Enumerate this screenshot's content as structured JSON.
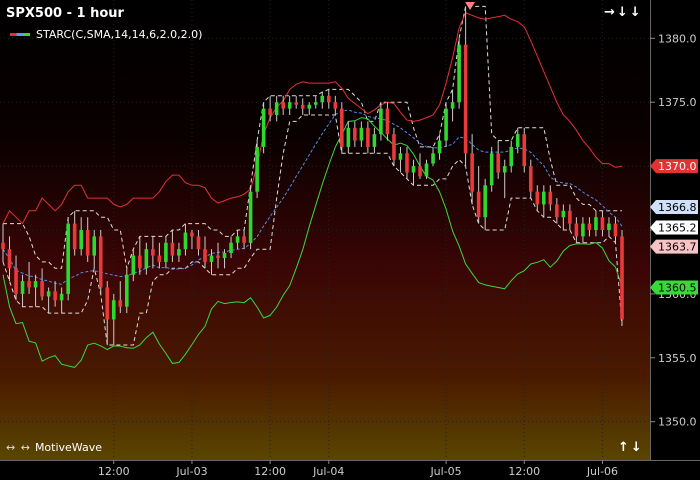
{
  "header": {
    "title": "SPX500 - 1 hour",
    "legend_label": "STARC(C,SMA,14,14,6,2.0,2.0)"
  },
  "brand": {
    "arrows": "↔ ↔",
    "name": "MotiveWave"
  },
  "nav": {
    "top_right": "→↓↓",
    "bottom_right": "↑↓"
  },
  "colors": {
    "upper_band": "#e23232",
    "lower_band": "#3ad83a",
    "middle": "#4a8fe8",
    "price_band": "#dddddd",
    "bull": "#2fd82f",
    "bear": "#e83a3a"
  },
  "chart_data": {
    "type": "candlestick",
    "ylim": [
      1347,
      1383
    ],
    "yticks": [
      1350.0,
      1355.0,
      1360.0,
      1365.0,
      1370.0,
      1375.0,
      1380.0
    ],
    "x_labels": [
      "12:00",
      "Jul-03",
      "12:00",
      "Jul-04",
      "Jul-05",
      "12:00",
      "Jul-06"
    ],
    "x_label_bars": [
      17,
      29,
      41,
      50,
      68,
      80,
      92
    ],
    "price_markers": [
      {
        "label": "1370.0",
        "value": 1370.0,
        "bg": "#e23232",
        "fg": "#ffffff"
      },
      {
        "label": "1366.8",
        "value": 1366.8,
        "bg": "#cfe0f8",
        "fg": "#000000"
      },
      {
        "label": "1365.2",
        "value": 1365.2,
        "bg": "#ffffff",
        "fg": "#000000"
      },
      {
        "label": "1363.7",
        "value": 1363.7,
        "bg": "#f6c4c4",
        "fg": "#000000"
      },
      {
        "label": "1360.5",
        "value": 1360.5,
        "bg": "#3ad83a",
        "fg": "#000000"
      }
    ],
    "candles": [
      [
        1364.0,
        1365.5,
        1362.5,
        1363.5
      ],
      [
        1363.5,
        1364.5,
        1361.0,
        1362.0
      ],
      [
        1362.0,
        1363.0,
        1359.5,
        1360.0
      ],
      [
        1360.0,
        1361.5,
        1359.0,
        1361.0
      ],
      [
        1361.0,
        1362.5,
        1360.0,
        1360.5
      ],
      [
        1360.5,
        1361.5,
        1359.0,
        1361.0
      ],
      [
        1361.0,
        1362.0,
        1359.5,
        1359.8
      ],
      [
        1359.8,
        1360.5,
        1358.5,
        1360.2
      ],
      [
        1360.2,
        1361.0,
        1359.0,
        1359.5
      ],
      [
        1359.5,
        1360.5,
        1358.5,
        1360.0
      ],
      [
        1360.0,
        1366.0,
        1359.5,
        1365.5
      ],
      [
        1365.5,
        1366.5,
        1363.0,
        1363.5
      ],
      [
        1363.5,
        1366.0,
        1363.0,
        1365.0
      ],
      [
        1365.0,
        1366.0,
        1362.5,
        1363.0
      ],
      [
        1363.0,
        1365.0,
        1362.0,
        1364.5
      ],
      [
        1364.5,
        1365.0,
        1360.0,
        1360.5
      ],
      [
        1360.5,
        1361.0,
        1356.0,
        1358.0
      ],
      [
        1358.0,
        1360.0,
        1356.0,
        1359.5
      ],
      [
        1359.5,
        1361.0,
        1358.5,
        1359.0
      ],
      [
        1359.0,
        1362.0,
        1358.5,
        1361.5
      ],
      [
        1361.5,
        1363.5,
        1361.0,
        1363.0
      ],
      [
        1363.0,
        1364.5,
        1361.5,
        1362.0
      ],
      [
        1362.0,
        1364.0,
        1361.5,
        1363.5
      ],
      [
        1363.5,
        1364.5,
        1362.0,
        1363.0
      ],
      [
        1363.0,
        1364.0,
        1362.0,
        1362.5
      ],
      [
        1362.5,
        1364.5,
        1362.0,
        1364.0
      ],
      [
        1364.0,
        1365.0,
        1362.5,
        1363.0
      ],
      [
        1363.0,
        1364.0,
        1362.5,
        1363.5
      ],
      [
        1363.5,
        1365.5,
        1363.0,
        1364.8
      ],
      [
        1364.8,
        1365.0,
        1363.5,
        1364.5
      ],
      [
        1364.5,
        1365.0,
        1363.0,
        1363.5
      ],
      [
        1363.5,
        1364.5,
        1362.0,
        1362.5
      ],
      [
        1362.5,
        1363.5,
        1361.5,
        1363.0
      ],
      [
        1363.0,
        1364.0,
        1362.0,
        1362.8
      ],
      [
        1362.8,
        1363.5,
        1362.0,
        1363.2
      ],
      [
        1363.2,
        1364.5,
        1362.8,
        1364.0
      ],
      [
        1364.0,
        1365.0,
        1363.5,
        1364.5
      ],
      [
        1364.5,
        1365.0,
        1363.5,
        1364.0
      ],
      [
        1364.0,
        1368.5,
        1363.5,
        1368.0
      ],
      [
        1368.0,
        1372.0,
        1367.5,
        1371.5
      ],
      [
        1371.5,
        1375.0,
        1371.0,
        1374.5
      ],
      [
        1374.5,
        1375.5,
        1373.5,
        1374.0
      ],
      [
        1374.0,
        1375.5,
        1373.5,
        1375.0
      ],
      [
        1375.0,
        1375.5,
        1374.0,
        1374.5
      ],
      [
        1374.5,
        1375.5,
        1374.0,
        1375.0
      ],
      [
        1375.0,
        1375.5,
        1374.5,
        1374.8
      ],
      [
        1374.8,
        1375.3,
        1374.0,
        1374.5
      ],
      [
        1374.5,
        1375.0,
        1374.0,
        1374.8
      ],
      [
        1374.8,
        1375.5,
        1374.5,
        1375.0
      ],
      [
        1375.0,
        1375.8,
        1374.5,
        1375.5
      ],
      [
        1375.5,
        1376.0,
        1374.5,
        1375.0
      ],
      [
        1375.0,
        1375.5,
        1374.0,
        1374.5
      ],
      [
        1374.5,
        1375.0,
        1371.0,
        1371.5
      ],
      [
        1371.5,
        1373.5,
        1371.0,
        1373.0
      ],
      [
        1373.0,
        1373.5,
        1371.5,
        1372.0
      ],
      [
        1372.0,
        1373.5,
        1371.5,
        1373.0
      ],
      [
        1373.0,
        1373.5,
        1371.0,
        1371.5
      ],
      [
        1371.5,
        1373.0,
        1371.0,
        1372.5
      ],
      [
        1372.5,
        1375.0,
        1372.0,
        1374.5
      ],
      [
        1374.5,
        1375.0,
        1372.0,
        1372.5
      ],
      [
        1372.5,
        1373.0,
        1370.0,
        1370.5
      ],
      [
        1370.5,
        1371.5,
        1369.5,
        1371.0
      ],
      [
        1371.0,
        1371.5,
        1369.0,
        1369.5
      ],
      [
        1369.5,
        1370.5,
        1368.5,
        1370.0
      ],
      [
        1370.0,
        1371.0,
        1369.0,
        1369.2
      ],
      [
        1369.2,
        1370.5,
        1369.0,
        1370.2
      ],
      [
        1370.2,
        1371.5,
        1370.0,
        1371.0
      ],
      [
        1371.0,
        1372.5,
        1370.5,
        1372.0
      ],
      [
        1372.0,
        1375.0,
        1371.5,
        1374.5
      ],
      [
        1374.5,
        1376.0,
        1373.5,
        1375.0
      ],
      [
        1375.0,
        1380.0,
        1374.5,
        1379.5
      ],
      [
        1379.5,
        1382.5,
        1370.0,
        1371.0
      ],
      [
        1371.0,
        1372.5,
        1367.0,
        1368.0
      ],
      [
        1368.0,
        1370.0,
        1365.5,
        1366.0
      ],
      [
        1366.0,
        1369.0,
        1365.0,
        1368.5
      ],
      [
        1368.5,
        1371.5,
        1368.0,
        1371.0
      ],
      [
        1371.0,
        1372.0,
        1369.0,
        1369.5
      ],
      [
        1369.5,
        1370.5,
        1367.5,
        1370.0
      ],
      [
        1370.0,
        1372.0,
        1369.5,
        1371.5
      ],
      [
        1371.5,
        1373.0,
        1371.0,
        1372.5
      ],
      [
        1372.5,
        1373.0,
        1369.5,
        1370.0
      ],
      [
        1370.0,
        1370.5,
        1367.5,
        1368.0
      ],
      [
        1368.0,
        1368.5,
        1366.5,
        1367.0
      ],
      [
        1367.0,
        1368.5,
        1366.0,
        1368.0
      ],
      [
        1368.0,
        1368.5,
        1366.5,
        1367.0
      ],
      [
        1367.0,
        1367.5,
        1365.5,
        1366.0
      ],
      [
        1366.0,
        1367.0,
        1365.0,
        1366.5
      ],
      [
        1366.5,
        1367.0,
        1365.0,
        1365.5
      ],
      [
        1365.5,
        1366.0,
        1364.0,
        1364.5
      ],
      [
        1364.5,
        1366.0,
        1364.0,
        1365.5
      ],
      [
        1365.5,
        1366.0,
        1364.5,
        1365.0
      ],
      [
        1365.0,
        1366.5,
        1364.5,
        1366.0
      ],
      [
        1366.0,
        1366.5,
        1364.5,
        1365.0
      ],
      [
        1365.0,
        1366.0,
        1364.5,
        1365.5
      ],
      [
        1365.5,
        1366.0,
        1364.0,
        1364.5
      ],
      [
        1364.5,
        1365.0,
        1357.5,
        1358.0
      ]
    ],
    "upper_band": [
      1365.5,
      1366.5,
      1366,
      1365.5,
      1366.5,
      1366.5,
      1367.5,
      1367,
      1366.5,
      1367,
      1368,
      1368.5,
      1368.5,
      1367.5,
      1367.5,
      1367.5,
      1367.5,
      1367,
      1366.8,
      1367,
      1367.5,
      1367.5,
      1367.5,
      1367.5,
      1368,
      1368.8,
      1369.3,
      1369.3,
      1368.7,
      1368.5,
      1368.5,
      1368.3,
      1367.5,
      1367.1,
      1367.3,
      1367.5,
      1367.6,
      1367.8,
      1368.2,
      1370,
      1372.5,
      1373.8,
      1374.6,
      1375.1,
      1376,
      1376.4,
      1376.6,
      1376.5,
      1376.5,
      1376.5,
      1376.5,
      1376.6,
      1376.1,
      1375.3,
      1374.9,
      1374.5,
      1374.1,
      1374.4,
      1374.8,
      1375,
      1374.9,
      1374.2,
      1373.6,
      1373.5,
      1373.6,
      1373.8,
      1374,
      1374.8,
      1376.5,
      1378.5,
      1380.8,
      1382,
      1381.8,
      1381.6,
      1381.5,
      1381.6,
      1381.7,
      1381.8,
      1381.5,
      1381.3,
      1380.9,
      1379.8,
      1378.6,
      1377.4,
      1376.2,
      1375,
      1374,
      1373.5,
      1372.8,
      1372,
      1371.4,
      1370.7,
      1370.2,
      1370.2,
      1369.9,
      1370
    ]
  }
}
